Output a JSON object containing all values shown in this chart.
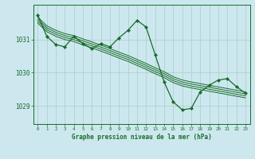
{
  "bg_color": "#cce8ee",
  "grid_color": "#aacccc",
  "line_color": "#1a6b2a",
  "title": "Graphe pression niveau de la mer (hPa)",
  "xlim": [
    -0.5,
    23.5
  ],
  "ylim": [
    1028.45,
    1032.05
  ],
  "yticks": [
    1029,
    1030,
    1031
  ],
  "xticks": [
    0,
    1,
    2,
    3,
    4,
    5,
    6,
    7,
    8,
    9,
    10,
    11,
    12,
    13,
    14,
    15,
    16,
    17,
    18,
    19,
    20,
    21,
    22,
    23
  ],
  "main_line": [
    1031.75,
    1031.1,
    1030.85,
    1030.78,
    1031.1,
    1030.88,
    1030.72,
    1030.88,
    1030.78,
    1031.05,
    1031.28,
    1031.58,
    1031.38,
    1030.55,
    1029.72,
    1029.12,
    1028.88,
    1028.92,
    1029.42,
    1029.62,
    1029.78,
    1029.82,
    1029.58,
    1029.38
  ],
  "smooth_line1": [
    1031.68,
    1031.42,
    1031.28,
    1031.18,
    1031.12,
    1031.02,
    1030.93,
    1030.83,
    1030.73,
    1030.62,
    1030.52,
    1030.4,
    1030.28,
    1030.15,
    1030.03,
    1029.88,
    1029.78,
    1029.72,
    1029.67,
    1029.62,
    1029.57,
    1029.52,
    1029.47,
    1029.42
  ],
  "smooth_line2": [
    1031.62,
    1031.36,
    1031.22,
    1031.12,
    1031.06,
    1030.96,
    1030.87,
    1030.77,
    1030.67,
    1030.56,
    1030.46,
    1030.34,
    1030.22,
    1030.09,
    1029.97,
    1029.82,
    1029.72,
    1029.66,
    1029.61,
    1029.56,
    1029.51,
    1029.46,
    1029.41,
    1029.36
  ],
  "smooth_line3": [
    1031.56,
    1031.3,
    1031.16,
    1031.06,
    1031.0,
    1030.9,
    1030.81,
    1030.71,
    1030.61,
    1030.5,
    1030.4,
    1030.28,
    1030.16,
    1030.03,
    1029.91,
    1029.76,
    1029.66,
    1029.6,
    1029.55,
    1029.5,
    1029.45,
    1029.4,
    1029.35,
    1029.3
  ],
  "smooth_line4": [
    1031.5,
    1031.24,
    1031.1,
    1031.0,
    1030.94,
    1030.84,
    1030.75,
    1030.65,
    1030.55,
    1030.44,
    1030.34,
    1030.22,
    1030.1,
    1029.97,
    1029.85,
    1029.7,
    1029.6,
    1029.54,
    1029.49,
    1029.44,
    1029.39,
    1029.34,
    1029.29,
    1029.24
  ]
}
